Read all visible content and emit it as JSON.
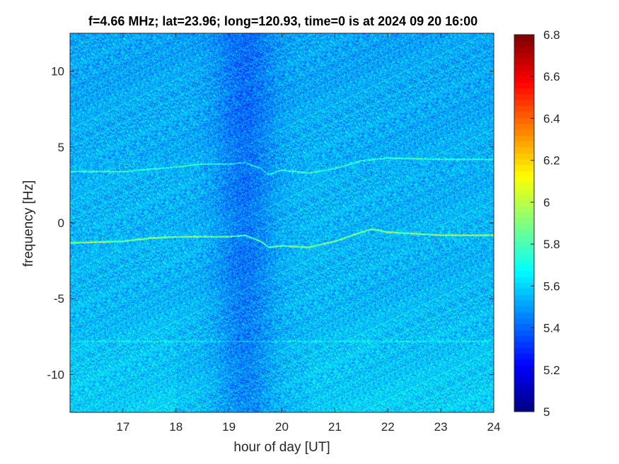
{
  "chart_data": {
    "type": "heatmap",
    "title": "f=4.66 MHz;  lat=23.96; long=120.93, time=0 is at 2024 09 20 16:00",
    "xlabel": "hour of day [UT]",
    "ylabel": "frequency [Hz]",
    "xlim": [
      16,
      24
    ],
    "ylim": [
      -12.5,
      12.5
    ],
    "xticks": [
      17,
      18,
      19,
      20,
      21,
      22,
      23,
      24
    ],
    "xtick_labels": [
      "17",
      "18",
      "19",
      "20",
      "21",
      "22",
      "23",
      "24"
    ],
    "yticks": [
      -10,
      -5,
      0,
      5,
      10
    ],
    "ytick_labels": [
      "-10",
      "-5",
      "0",
      "5",
      "10"
    ],
    "colorbar": {
      "colormap": "jet",
      "clim": [
        5,
        6.8
      ],
      "ticks": [
        5,
        5.2,
        5.4,
        5.6,
        5.8,
        6,
        6.2,
        6.4,
        6.6,
        6.8
      ],
      "tick_labels": [
        "5",
        "5.2",
        "5.4",
        "5.6",
        "5.8",
        "6",
        "6.2",
        "6.4",
        "6.6",
        "6.8"
      ]
    },
    "background_level": 5.55,
    "traces": [
      {
        "x": [
          16.0,
          17.0,
          17.5,
          18.0,
          18.5,
          19.0,
          19.3,
          19.6,
          19.75,
          20.0,
          20.5,
          21.0,
          21.5,
          21.7,
          22.0,
          22.5,
          23.0,
          23.5,
          24.0
        ],
        "y": [
          -1.3,
          -1.2,
          -1.0,
          -0.9,
          -0.9,
          -0.9,
          -0.8,
          -1.2,
          -1.6,
          -1.5,
          -1.6,
          -1.2,
          -0.6,
          -0.4,
          -0.6,
          -0.7,
          -0.8,
          -0.8,
          -0.8
        ]
      },
      {
        "x": [
          16.0,
          17.0,
          18.0,
          18.5,
          19.0,
          19.3,
          19.6,
          19.75,
          20.0,
          20.5,
          21.0,
          21.5,
          22.0,
          23.0,
          24.0
        ],
        "y": [
          3.4,
          3.4,
          3.7,
          3.9,
          3.9,
          4.0,
          3.6,
          3.2,
          3.5,
          3.3,
          3.6,
          4.1,
          4.3,
          4.2,
          4.2
        ]
      },
      {
        "x": [
          16.0,
          18.0,
          20.0,
          22.0,
          24.0
        ],
        "y": [
          -7.8,
          -7.8,
          -7.8,
          -7.8,
          -7.8
        ]
      }
    ]
  }
}
